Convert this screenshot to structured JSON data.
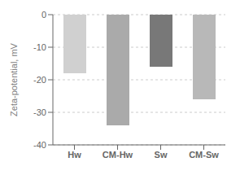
{
  "chart_data": {
    "type": "bar",
    "categories": [
      "Hw",
      "CM-Hw",
      "Sw",
      "CM-Sw"
    ],
    "values": [
      -18.0,
      -34.0,
      -16.0,
      -26.0
    ],
    "colors": [
      "#d0d0d0",
      "#aaaaaa",
      "#787878",
      "#b8b8b8"
    ],
    "ylim": [
      -40,
      0
    ],
    "yticks": [
      0,
      -10,
      -20,
      -30,
      -40
    ],
    "ylabel": "Zeta-potential, mV",
    "grid": true
  }
}
